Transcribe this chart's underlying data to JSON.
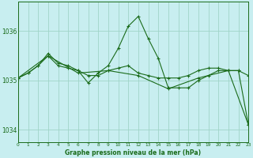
{
  "title": "Graphe pression niveau de la mer (hPa)",
  "background_color": "#c8eef0",
  "line_color": "#1a6b1a",
  "grid_color": "#a0d4c8",
  "label_color": "#1a6b1a",
  "series": [
    {
      "x": [
        0,
        1,
        2,
        3,
        4,
        5,
        6,
        7,
        8,
        9,
        10,
        11,
        12,
        13,
        14,
        15,
        16,
        17,
        18,
        19,
        20,
        21,
        22,
        23
      ],
      "y": [
        1035.05,
        1035.15,
        1035.3,
        1035.55,
        1035.35,
        1035.3,
        1035.2,
        1034.95,
        1035.15,
        1035.3,
        1035.65,
        1036.1,
        1036.3,
        1035.85,
        1035.45,
        1034.85,
        1034.85,
        1034.85,
        1035.0,
        1035.1,
        1035.2,
        1035.2,
        1035.2,
        1034.1
      ]
    },
    {
      "x": [
        0,
        1,
        2,
        3,
        4,
        5,
        6,
        7,
        8,
        9,
        10,
        11,
        12,
        13,
        14,
        15,
        16,
        17,
        18,
        19,
        20,
        21,
        22,
        23
      ],
      "y": [
        1035.05,
        1035.15,
        1035.3,
        1035.5,
        1035.3,
        1035.25,
        1035.2,
        1035.1,
        1035.1,
        1035.2,
        1035.25,
        1035.3,
        1035.15,
        1035.1,
        1035.05,
        1035.05,
        1035.05,
        1035.1,
        1035.2,
        1035.25,
        1035.25,
        1035.2,
        1035.2,
        1035.1
      ]
    },
    {
      "x": [
        0,
        3,
        6,
        9,
        12,
        15,
        18,
        21,
        23
      ],
      "y": [
        1035.05,
        1035.5,
        1035.15,
        1035.2,
        1035.1,
        1034.83,
        1035.05,
        1035.2,
        1034.1
      ]
    }
  ],
  "ylim": [
    1033.75,
    1036.6
  ],
  "yticks": [
    1034,
    1035,
    1036
  ],
  "xlim": [
    0,
    23
  ],
  "xticks": [
    0,
    1,
    2,
    3,
    4,
    5,
    6,
    7,
    8,
    9,
    10,
    11,
    12,
    13,
    14,
    15,
    16,
    17,
    18,
    19,
    20,
    21,
    22,
    23
  ],
  "figwidth": 3.2,
  "figheight": 2.0,
  "dpi": 100
}
